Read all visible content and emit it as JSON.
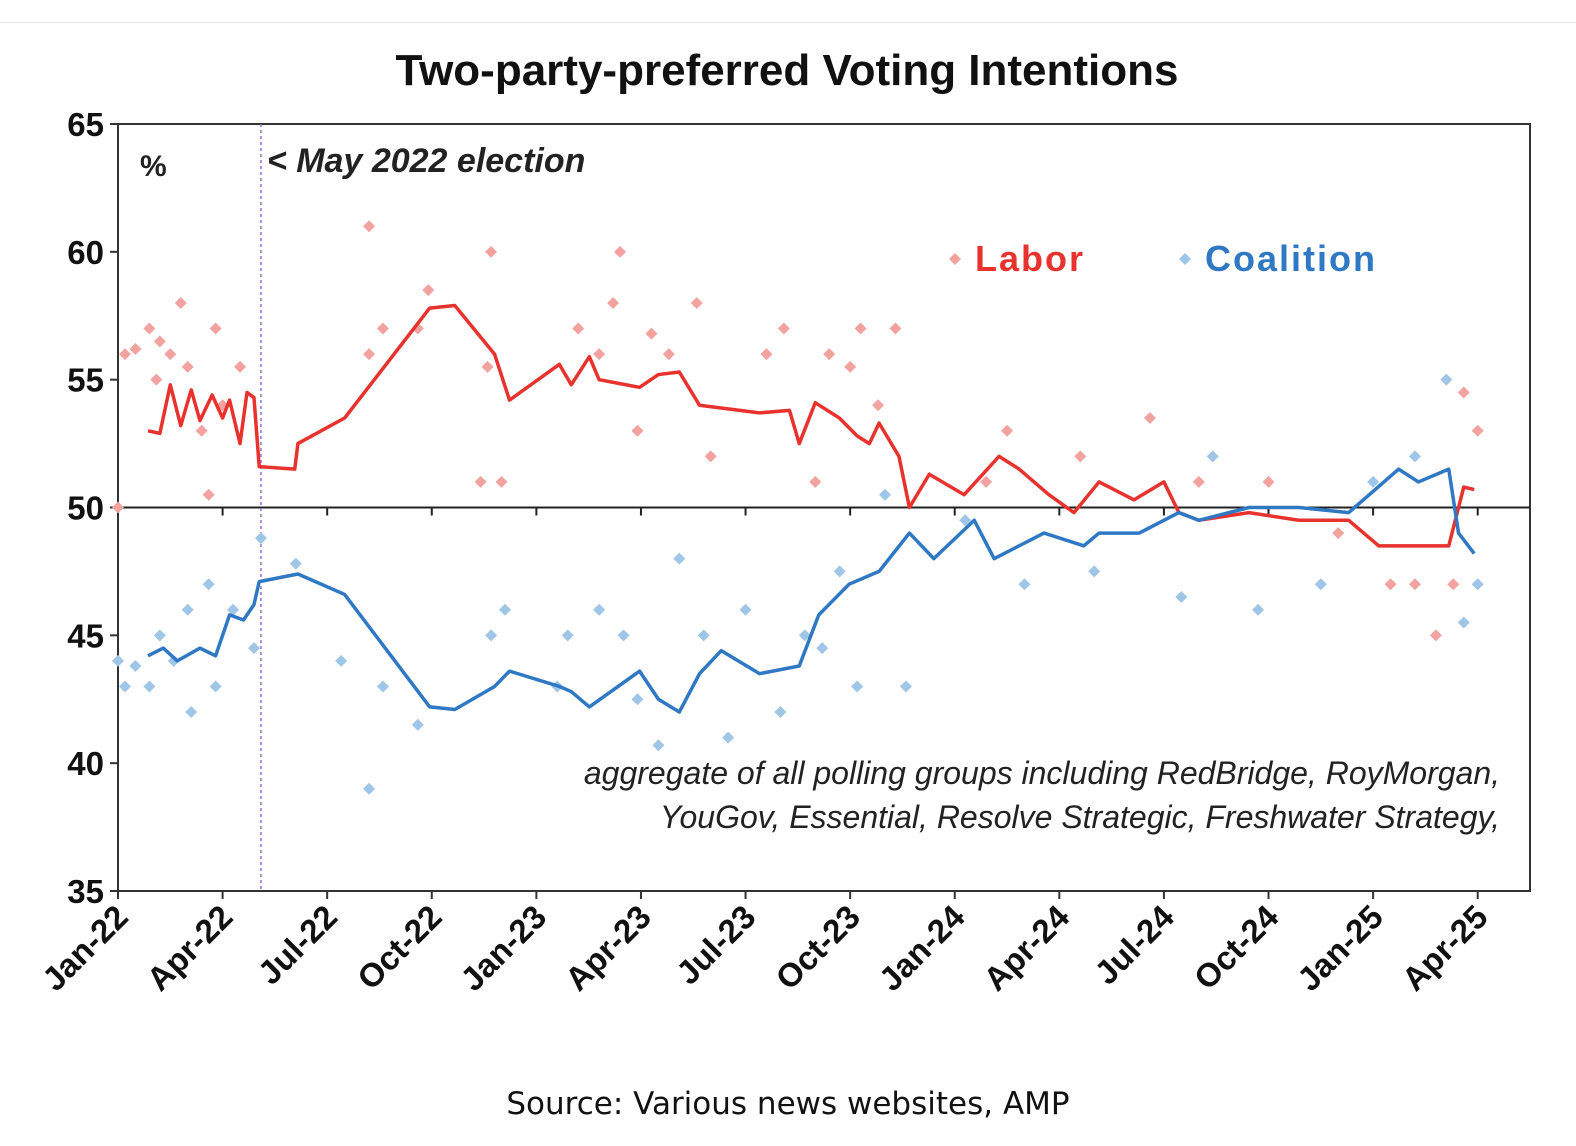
{
  "chart_data": {
    "type": "line",
    "title": "Two-party-preferred Voting Intentions",
    "ylabel": "%",
    "xlabel": "",
    "ylim": [
      35,
      65
    ],
    "yticks": [
      35,
      40,
      45,
      50,
      55,
      60,
      65
    ],
    "x_unit": "months since Jan-22",
    "xlim": [
      0,
      40.5
    ],
    "xtick_labels": [
      "Jan-22",
      "Apr-22",
      "Jul-22",
      "Oct-22",
      "Jan-23",
      "Apr-23",
      "Jul-23",
      "Oct-23",
      "Jan-24",
      "Apr-24",
      "Jul-24",
      "Oct-24",
      "Jan-25",
      "Apr-25"
    ],
    "xtick_step_months": 3,
    "reference_line": {
      "y": 50
    },
    "annotations": {
      "election": {
        "label": "< May 2022 election",
        "x": 4.1
      },
      "note_line1": "aggregate of all polling groups including RedBridge, RoyMorgan,",
      "note_line2": "YouGov, Essential, Resolve Strategic, Freshwater Strategy,"
    },
    "legend": {
      "placement": "top-right"
    },
    "series": [
      {
        "name": "Labor",
        "color": "#e8322d",
        "point_color": "#f2a3a0",
        "line": [
          [
            0.86,
            53
          ],
          [
            1.2,
            52.9
          ],
          [
            1.5,
            54.8
          ],
          [
            1.8,
            53.2
          ],
          [
            2.1,
            54.6
          ],
          [
            2.35,
            53.4
          ],
          [
            2.7,
            54.4
          ],
          [
            3.0,
            53.5
          ],
          [
            3.2,
            54.2
          ],
          [
            3.5,
            52.5
          ],
          [
            3.7,
            54.5
          ],
          [
            3.9,
            54.3
          ],
          [
            4.05,
            51.6
          ],
          [
            5.07,
            51.5
          ],
          [
            5.16,
            52.5
          ],
          [
            6.5,
            53.5
          ],
          [
            8.94,
            57.8
          ],
          [
            9.66,
            57.9
          ],
          [
            10.8,
            56
          ],
          [
            11.23,
            54.2
          ],
          [
            12.66,
            55.6
          ],
          [
            13.0,
            54.8
          ],
          [
            13.52,
            55.9
          ],
          [
            13.8,
            55
          ],
          [
            14.96,
            54.7
          ],
          [
            15.5,
            55.2
          ],
          [
            16.1,
            55.3
          ],
          [
            16.68,
            54
          ],
          [
            18.4,
            53.7
          ],
          [
            19.26,
            53.8
          ],
          [
            19.54,
            52.5
          ],
          [
            20.0,
            54.1
          ],
          [
            20.69,
            53.5
          ],
          [
            21.2,
            52.8
          ],
          [
            21.55,
            52.5
          ],
          [
            21.83,
            53.3
          ],
          [
            22.4,
            52
          ],
          [
            22.7,
            50
          ],
          [
            23.27,
            51.3
          ],
          [
            24.27,
            50.5
          ],
          [
            25.27,
            52
          ],
          [
            25.85,
            51.5
          ],
          [
            26.7,
            50.5
          ],
          [
            27.42,
            49.8
          ],
          [
            28.14,
            51
          ],
          [
            29.14,
            50.3
          ],
          [
            30,
            51
          ],
          [
            30.43,
            49.8
          ],
          [
            31,
            49.5
          ],
          [
            32.44,
            49.8
          ],
          [
            33.87,
            49.5
          ],
          [
            35.3,
            49.5
          ],
          [
            36.16,
            48.5
          ],
          [
            37.3,
            48.5
          ],
          [
            38.17,
            48.5
          ],
          [
            38.6,
            50.8
          ],
          [
            38.9,
            50.7
          ]
        ],
        "points": [
          [
            0.2,
            56
          ],
          [
            0.5,
            56.2
          ],
          [
            0.9,
            57
          ],
          [
            1.2,
            56.5
          ],
          [
            1.5,
            56
          ],
          [
            1.8,
            58
          ],
          [
            2,
            55.5
          ],
          [
            2.8,
            57
          ],
          [
            3.5,
            55.5
          ],
          [
            1.1,
            55
          ],
          [
            2.4,
            53
          ],
          [
            3,
            54
          ],
          [
            0,
            50
          ],
          [
            2.6,
            50.5
          ],
          [
            7.2,
            56
          ],
          [
            8.6,
            57
          ],
          [
            8.9,
            58.5
          ],
          [
            7.6,
            57
          ],
          [
            10.7,
            60
          ],
          [
            10.6,
            55.5
          ],
          [
            11,
            51
          ],
          [
            10.4,
            51
          ],
          [
            7.2,
            61
          ],
          [
            13.2,
            57
          ],
          [
            14.2,
            58
          ],
          [
            14.4,
            60
          ],
          [
            13.8,
            56
          ],
          [
            14.9,
            53
          ],
          [
            15.3,
            56.8
          ],
          [
            15.8,
            56
          ],
          [
            16.6,
            58
          ],
          [
            17,
            52
          ],
          [
            18.6,
            56
          ],
          [
            19.1,
            57
          ],
          [
            20,
            51
          ],
          [
            20.4,
            56
          ],
          [
            21,
            55.5
          ],
          [
            21.3,
            57
          ],
          [
            22.3,
            57
          ],
          [
            21.8,
            54
          ],
          [
            24.9,
            51
          ],
          [
            25.5,
            53
          ],
          [
            27.6,
            52
          ],
          [
            29.6,
            53.5
          ],
          [
            31,
            51
          ],
          [
            33,
            51
          ],
          [
            35,
            49
          ],
          [
            37.8,
            45
          ],
          [
            38.6,
            54.5
          ],
          [
            39,
            53
          ],
          [
            36.5,
            47
          ],
          [
            37.2,
            47
          ],
          [
            38.3,
            47
          ]
        ]
      },
      {
        "name": "Coalition",
        "color": "#2f78c4",
        "point_color": "#9fc6e6",
        "line": [
          [
            0.86,
            44.2
          ],
          [
            1.3,
            44.5
          ],
          [
            1.7,
            44
          ],
          [
            2.35,
            44.5
          ],
          [
            2.8,
            44.2
          ],
          [
            3.2,
            45.8
          ],
          [
            3.6,
            45.6
          ],
          [
            3.9,
            46.2
          ],
          [
            4.05,
            47.1
          ],
          [
            5.16,
            47.4
          ],
          [
            6.5,
            46.6
          ],
          [
            8.94,
            42.2
          ],
          [
            9.66,
            42.1
          ],
          [
            10.8,
            43
          ],
          [
            11.23,
            43.6
          ],
          [
            12.66,
            43
          ],
          [
            13.0,
            42.8
          ],
          [
            13.52,
            42.2
          ],
          [
            14.96,
            43.6
          ],
          [
            15.5,
            42.5
          ],
          [
            16.1,
            42
          ],
          [
            16.68,
            43.5
          ],
          [
            17.3,
            44.4
          ],
          [
            18.4,
            43.5
          ],
          [
            19.54,
            43.8
          ],
          [
            20.1,
            45.8
          ],
          [
            20.97,
            47
          ],
          [
            21.83,
            47.5
          ],
          [
            22.7,
            49
          ],
          [
            23.4,
            48
          ],
          [
            24.56,
            49.5
          ],
          [
            25.13,
            48
          ],
          [
            26.56,
            49
          ],
          [
            27.7,
            48.5
          ],
          [
            28.14,
            49
          ],
          [
            29.29,
            49
          ],
          [
            30.43,
            49.8
          ],
          [
            31,
            49.5
          ],
          [
            32.44,
            50
          ],
          [
            33.87,
            50
          ],
          [
            35.3,
            49.8
          ],
          [
            36.73,
            51.5
          ],
          [
            37.3,
            51
          ],
          [
            38.17,
            51.5
          ],
          [
            38.45,
            49
          ],
          [
            38.9,
            48.2
          ]
        ],
        "points": [
          [
            0,
            44
          ],
          [
            0.2,
            43
          ],
          [
            0.5,
            43.8
          ],
          [
            0.9,
            43
          ],
          [
            1.2,
            45
          ],
          [
            1.6,
            44
          ],
          [
            2,
            46
          ],
          [
            2.1,
            42
          ],
          [
            2.8,
            43
          ],
          [
            2.6,
            47
          ],
          [
            3.3,
            46
          ],
          [
            3.9,
            44.5
          ],
          [
            4.1,
            48.8
          ],
          [
            5.1,
            47.8
          ],
          [
            6.4,
            44
          ],
          [
            7.6,
            43
          ],
          [
            8.6,
            41.5
          ],
          [
            7.2,
            39
          ],
          [
            10.7,
            45
          ],
          [
            11.1,
            46
          ],
          [
            12.6,
            43
          ],
          [
            12.9,
            45
          ],
          [
            13.8,
            46
          ],
          [
            14.5,
            45
          ],
          [
            14.9,
            42.5
          ],
          [
            15.5,
            40.7
          ],
          [
            16.1,
            48
          ],
          [
            16.8,
            45
          ],
          [
            17.5,
            41
          ],
          [
            18,
            46
          ],
          [
            19,
            42
          ],
          [
            19.7,
            45
          ],
          [
            20.2,
            44.5
          ],
          [
            20.7,
            47.5
          ],
          [
            21.2,
            43
          ],
          [
            22,
            50.5
          ],
          [
            22.6,
            43
          ],
          [
            24.3,
            49.5
          ],
          [
            26,
            47
          ],
          [
            28,
            47.5
          ],
          [
            30.5,
            46.5
          ],
          [
            31.4,
            52
          ],
          [
            32.7,
            46
          ],
          [
            34.5,
            47
          ],
          [
            36,
            51
          ],
          [
            37.2,
            52
          ],
          [
            38.1,
            55
          ],
          [
            38.6,
            45.5
          ],
          [
            39,
            47
          ]
        ]
      }
    ]
  },
  "source": "Source: Various news websites, AMP"
}
